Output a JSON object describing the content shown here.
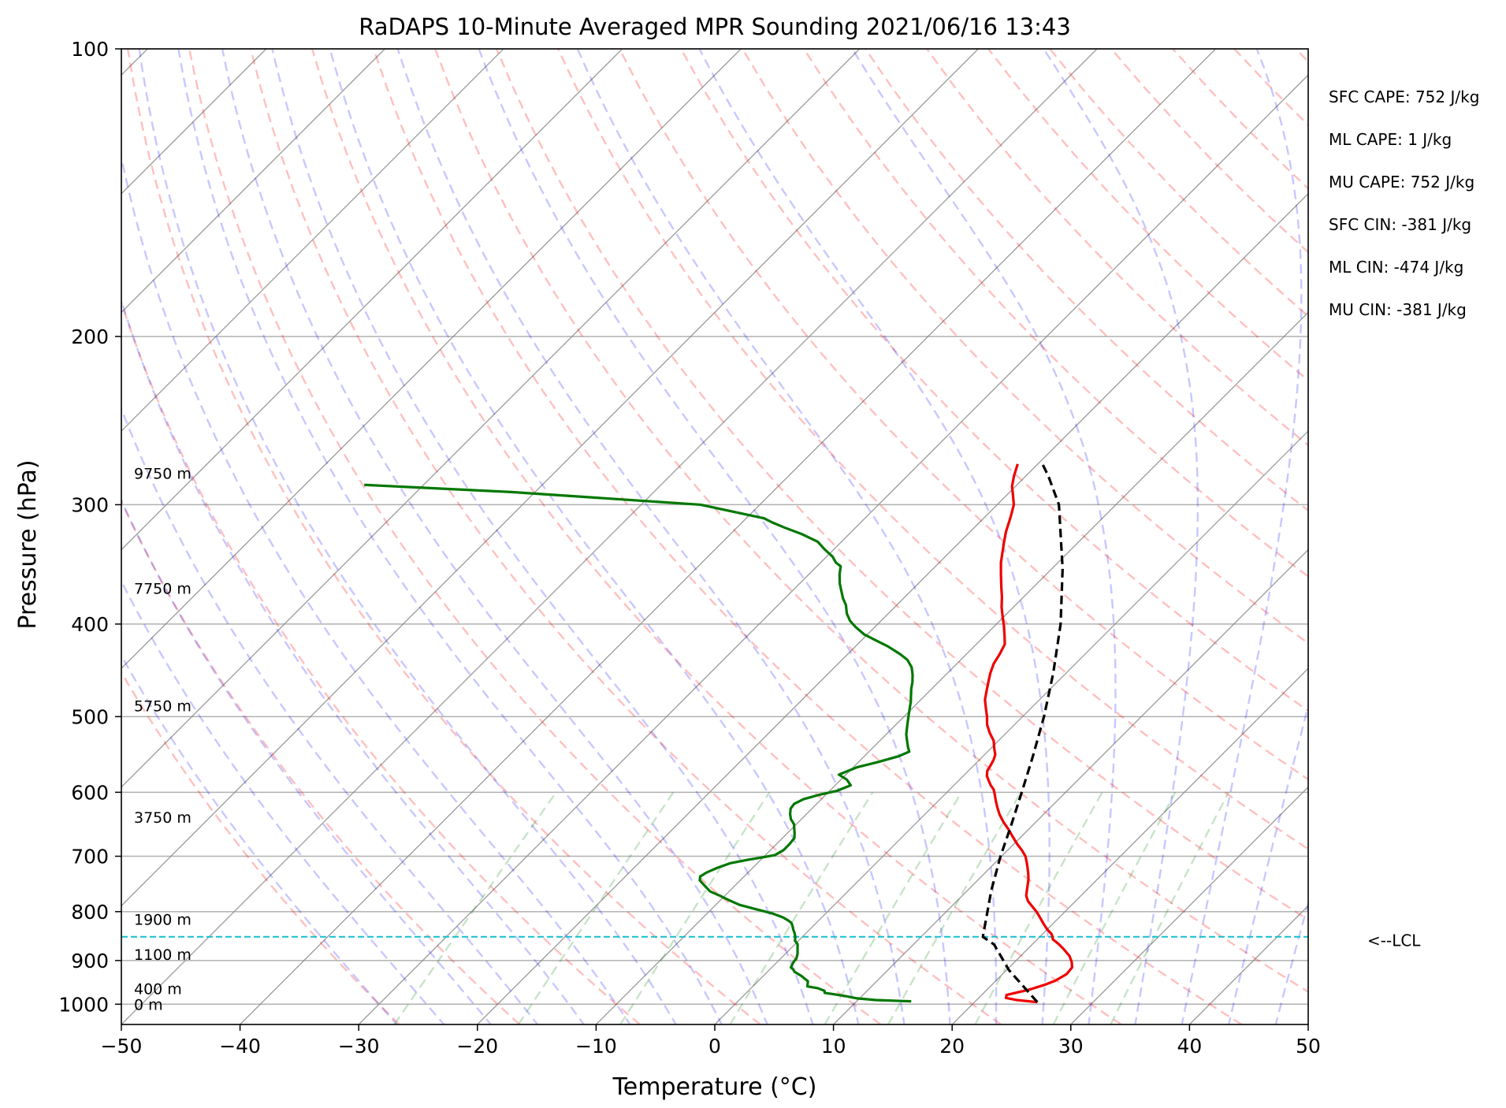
{
  "chart_data": {
    "type": "line",
    "subtype": "skew-t log-p sounding",
    "title": "RaDAPS 10-Minute Averaged MPR Sounding 2021/06/16 13:43",
    "xlabel": "Temperature (°C)",
    "ylabel": "Pressure (hPa)",
    "xlim": [
      -50,
      50
    ],
    "ylim": [
      1050,
      100
    ],
    "y_scale": "log",
    "grid": true,
    "x_ticks": [
      "−50",
      "−40",
      "−30",
      "−20",
      "−10",
      "0",
      "10",
      "20",
      "30",
      "40",
      "50"
    ],
    "y_ticks": [
      "100",
      "200",
      "300",
      "400",
      "500",
      "600",
      "700",
      "800",
      "900",
      "1000"
    ],
    "series": [
      {
        "role": "temperature",
        "color": "#ee0000",
        "points": [
          [
            25.3,
            995
          ],
          [
            23.4,
            990
          ],
          [
            22.3,
            985
          ],
          [
            22.1,
            978
          ],
          [
            22.8,
            972
          ],
          [
            23.6,
            965
          ],
          [
            24.4,
            955
          ],
          [
            25.0,
            945
          ],
          [
            25.4,
            930
          ],
          [
            25.3,
            915
          ],
          [
            24.8,
            903
          ],
          [
            24.1,
            890
          ],
          [
            23.0,
            875
          ],
          [
            22.2,
            865
          ],
          [
            21.3,
            855
          ],
          [
            20.8,
            845
          ],
          [
            20.0,
            835
          ],
          [
            19.3,
            825
          ],
          [
            18.5,
            813
          ],
          [
            17.6,
            800
          ],
          [
            16.8,
            790
          ],
          [
            16.0,
            780
          ],
          [
            15.4,
            770
          ],
          [
            15.0,
            760
          ],
          [
            14.6,
            750
          ],
          [
            14.2,
            740
          ],
          [
            13.6,
            728
          ],
          [
            13.0,
            717
          ],
          [
            12.6,
            710
          ],
          [
            12.0,
            700
          ],
          [
            11.2,
            690
          ],
          [
            10.3,
            680
          ],
          [
            9.3,
            668
          ],
          [
            8.3,
            656
          ],
          [
            7.3,
            645
          ],
          [
            6.3,
            633
          ],
          [
            5.5,
            622
          ],
          [
            4.8,
            612
          ],
          [
            4.2,
            603
          ],
          [
            3.7,
            596
          ],
          [
            3.1,
            590
          ],
          [
            2.5,
            583
          ],
          [
            2.0,
            577
          ],
          [
            1.6,
            570
          ],
          [
            1.4,
            562
          ],
          [
            1.2,
            555
          ],
          [
            0.9,
            548
          ],
          [
            0.3,
            540
          ],
          [
            -0.4,
            530
          ],
          [
            -1.4,
            520
          ],
          [
            -2.3,
            510
          ],
          [
            -3.0,
            500
          ],
          [
            -3.8,
            490
          ],
          [
            -4.6,
            480
          ],
          [
            -5.2,
            470
          ],
          [
            -5.8,
            460
          ],
          [
            -6.4,
            450
          ],
          [
            -6.9,
            440
          ],
          [
            -7.2,
            430
          ],
          [
            -7.6,
            420
          ],
          [
            -8.2,
            413
          ],
          [
            -9.2,
            402
          ],
          [
            -10.2,
            392
          ],
          [
            -11.0,
            384
          ],
          [
            -11.8,
            375
          ],
          [
            -12.7,
            366
          ],
          [
            -13.8,
            355
          ],
          [
            -14.8,
            345
          ],
          [
            -15.5,
            337
          ],
          [
            -16.3,
            328
          ],
          [
            -17.0,
            320
          ],
          [
            -17.6,
            312
          ],
          [
            -18.0,
            307
          ],
          [
            -18.6,
            300
          ],
          [
            -19.5,
            293
          ],
          [
            -20.3,
            287
          ],
          [
            -21.0,
            280
          ],
          [
            -21.7,
            272
          ]
        ]
      },
      {
        "role": "dewpoint",
        "color": "#007700",
        "points": [
          [
            14.6,
            993
          ],
          [
            13.5,
            992
          ],
          [
            11.5,
            990
          ],
          [
            9.8,
            986
          ],
          [
            8.7,
            981
          ],
          [
            7.7,
            977
          ],
          [
            6.6,
            973
          ],
          [
            6.4,
            968
          ],
          [
            5.6,
            962
          ],
          [
            4.6,
            958
          ],
          [
            4.4,
            952
          ],
          [
            4.2,
            946
          ],
          [
            3.7,
            940
          ],
          [
            3.2,
            934
          ],
          [
            2.8,
            930
          ],
          [
            2.3,
            925
          ],
          [
            2.0,
            920
          ],
          [
            1.6,
            915
          ],
          [
            1.4,
            905
          ],
          [
            1.3,
            895
          ],
          [
            1.0,
            885
          ],
          [
            0.6,
            875
          ],
          [
            0.2,
            865
          ],
          [
            -0.3,
            858
          ],
          [
            -0.6,
            850
          ],
          [
            -1.0,
            842
          ],
          [
            -1.4,
            835
          ],
          [
            -1.7,
            829
          ],
          [
            -2.1,
            822
          ],
          [
            -2.6,
            817
          ],
          [
            -3.3,
            811
          ],
          [
            -4.6,
            803
          ],
          [
            -6.3,
            795
          ],
          [
            -8.0,
            787
          ],
          [
            -9.3,
            778
          ],
          [
            -10.4,
            770
          ],
          [
            -11.6,
            762
          ],
          [
            -12.5,
            752
          ],
          [
            -13.4,
            742
          ],
          [
            -13.7,
            735
          ],
          [
            -13.5,
            728
          ],
          [
            -13.0,
            720
          ],
          [
            -12.3,
            712
          ],
          [
            -11.1,
            706
          ],
          [
            -10.1,
            702
          ],
          [
            -9.2,
            698
          ],
          [
            -8.9,
            690
          ],
          [
            -8.9,
            680
          ],
          [
            -9.0,
            670
          ],
          [
            -9.4,
            662
          ],
          [
            -9.8,
            655
          ],
          [
            -10.2,
            648
          ],
          [
            -10.9,
            640
          ],
          [
            -11.4,
            632
          ],
          [
            -11.8,
            624
          ],
          [
            -11.9,
            617
          ],
          [
            -11.5,
            610
          ],
          [
            -10.6,
            604
          ],
          [
            -9.4,
            598
          ],
          [
            -8.7,
            590
          ],
          [
            -9.5,
            582
          ],
          [
            -10.6,
            575
          ],
          [
            -9.7,
            565
          ],
          [
            -8.4,
            558
          ],
          [
            -7.1,
            550
          ],
          [
            -6.6,
            544
          ],
          [
            -7.1,
            538
          ],
          [
            -7.7,
            530
          ],
          [
            -8.3,
            522
          ],
          [
            -8.9,
            512
          ],
          [
            -9.5,
            502
          ],
          [
            -10.1,
            492
          ],
          [
            -10.7,
            482
          ],
          [
            -11.2,
            475
          ],
          [
            -11.7,
            468
          ],
          [
            -12.2,
            460
          ],
          [
            -12.8,
            452
          ],
          [
            -13.5,
            444
          ],
          [
            -14.5,
            436
          ],
          [
            -15.6,
            430
          ],
          [
            -17.3,
            422
          ],
          [
            -18.8,
            416
          ],
          [
            -20.3,
            410
          ],
          [
            -21.6,
            403
          ],
          [
            -22.6,
            397
          ],
          [
            -23.5,
            390
          ],
          [
            -24.3,
            382
          ],
          [
            -25.1,
            376
          ],
          [
            -25.9,
            369
          ],
          [
            -26.6,
            363
          ],
          [
            -27.4,
            355
          ],
          [
            -28.0,
            348
          ],
          [
            -28.7,
            345
          ],
          [
            -29.5,
            340
          ],
          [
            -30.8,
            334
          ],
          [
            -32.0,
            328
          ],
          [
            -34.0,
            322
          ],
          [
            -36.0,
            317
          ],
          [
            -37.5,
            313
          ],
          [
            -38.5,
            310
          ],
          [
            -45.0,
            300
          ],
          [
            -62.0,
            291
          ],
          [
            -75.0,
            286
          ]
        ]
      },
      {
        "role": "parcel",
        "color": "#000000",
        "style": "dashed",
        "points": [
          [
            25.3,
            995
          ],
          [
            20.2,
            921
          ],
          [
            16.8,
            866
          ],
          [
            15.2,
            850
          ],
          [
            12.0,
            760
          ],
          [
            9.9,
            700
          ],
          [
            8.2,
            650
          ],
          [
            6.3,
            600
          ],
          [
            4.2,
            550
          ],
          [
            1.8,
            500
          ],
          [
            -1.1,
            450
          ],
          [
            -4.6,
            400
          ],
          [
            -9.1,
            350
          ],
          [
            -14.8,
            300
          ],
          [
            -18.1,
            280
          ],
          [
            -20.0,
            270
          ]
        ]
      }
    ],
    "annotations": {
      "height_labels": [
        {
          "text": "9750 m",
          "pressure": 278
        },
        {
          "text": "7750 m",
          "pressure": 367
        },
        {
          "text": "5750 m",
          "pressure": 487
        },
        {
          "text": "3750 m",
          "pressure": 637
        },
        {
          "text": "1900 m",
          "pressure": 815
        },
        {
          "text": "1100 m",
          "pressure": 887
        },
        {
          "text": "400 m",
          "pressure": 963
        },
        {
          "text": "0 m",
          "pressure": 1000
        }
      ],
      "lcl": {
        "text": "<--LCL",
        "pressure": 850
      },
      "indices": [
        "SFC CAPE: 752 J/kg",
        "ML CAPE: 1 J/kg",
        "MU CAPE: 752 J/kg",
        "SFC CIN: -381 J/kg",
        "ML CIN: -474 J/kg",
        "MU CIN: -381 J/kg"
      ]
    },
    "colors": {
      "temperature": "#ee0000",
      "dewpoint": "#007700",
      "parcel": "#000000",
      "lcl_line": "#17becf",
      "dry_adiabats": "#ff0000",
      "moist_adiabats": "#0000ff",
      "mixing_ratio": "#008000",
      "isotherms": "#888888"
    }
  }
}
